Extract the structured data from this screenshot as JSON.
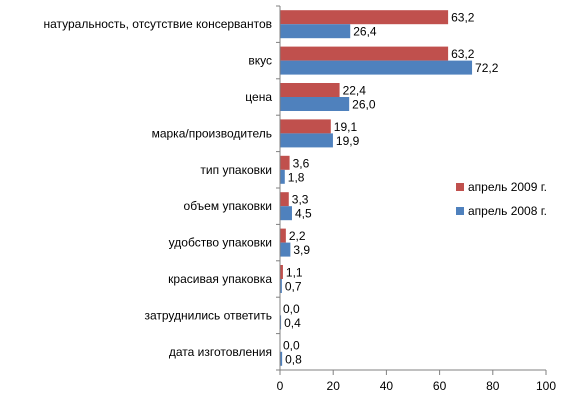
{
  "chart_data": {
    "type": "bar",
    "orientation": "horizontal",
    "categories": [
      "натуральность, отсутствие консервантов",
      "вкус",
      "цена",
      "марка/производитель",
      "тип упаковки",
      "объем упаковки",
      "удобство упаковки",
      "красивая упаковка",
      "затруднились ответить",
      "дата изготовления"
    ],
    "series": [
      {
        "name": "апрель 2009 г.",
        "color": "#c0504d",
        "values": [
          63.2,
          63.2,
          22.4,
          19.1,
          3.6,
          3.3,
          2.2,
          1.1,
          0.0,
          0.0
        ],
        "labels": [
          "63,2",
          "63,2",
          "22,4",
          "19,1",
          "3,6",
          "3,3",
          "2,2",
          "1,1",
          "0,0",
          "0,0"
        ]
      },
      {
        "name": "апрель 2008 г.",
        "color": "#4f81bd",
        "values": [
          26.4,
          72.2,
          26.0,
          19.9,
          1.8,
          4.5,
          3.9,
          0.7,
          0.4,
          0.8
        ],
        "labels": [
          "26,4",
          "72,2",
          "26,0",
          "19,9",
          "1,8",
          "4,5",
          "3,9",
          "0,7",
          "0,4",
          "0,8"
        ]
      }
    ],
    "xlim": [
      0,
      100
    ],
    "xticks": [
      "0",
      "20",
      "40",
      "60",
      "80",
      "100"
    ],
    "grid": false,
    "legend": "right"
  }
}
